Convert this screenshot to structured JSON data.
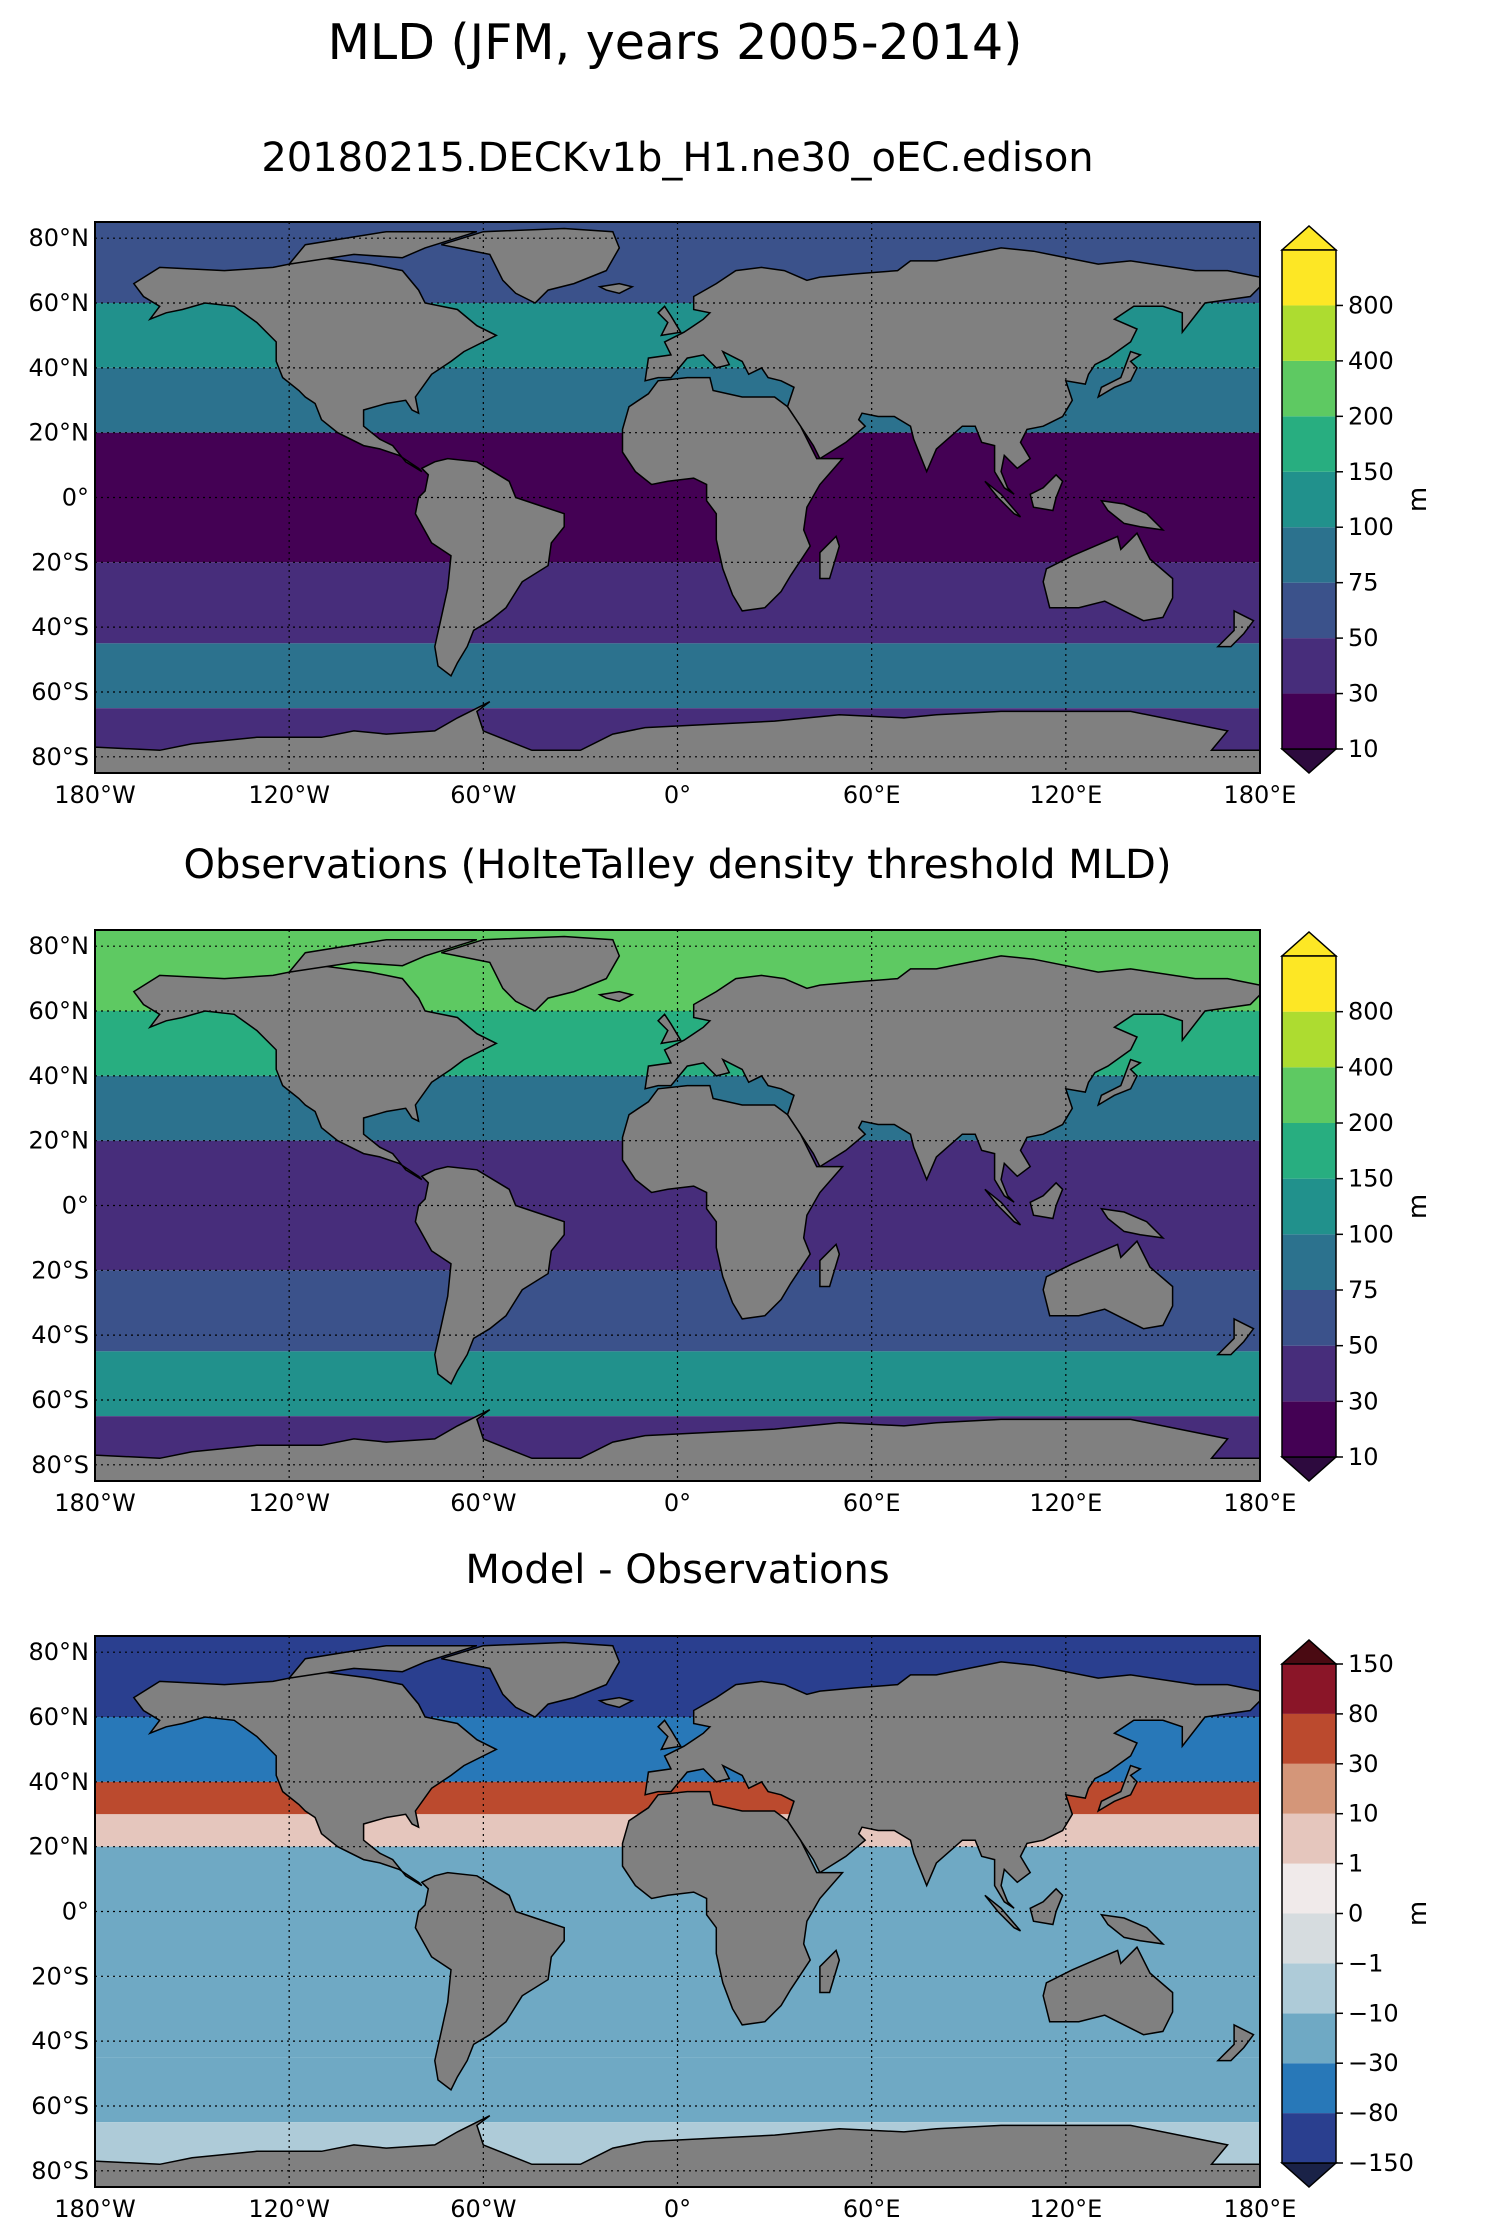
{
  "figure": {
    "suptitle": "MLD (JFM, years 2005-2014)",
    "map_land_color": "#808080",
    "map_missing_color": "#ffffff"
  },
  "chart_data": [
    {
      "type": "heatmap",
      "title": "20180215.DECKv1b_H1.ne30_oEC.edison",
      "x_ticks": [
        "180°W",
        "120°W",
        "60°W",
        "0°",
        "60°E",
        "120°E",
        "180°E"
      ],
      "y_ticks": [
        "80°N",
        "60°N",
        "40°N",
        "20°N",
        "0°",
        "20°S",
        "40°S",
        "60°S",
        "80°S"
      ],
      "xlim": [
        -180,
        180
      ],
      "ylim": [
        -85,
        85
      ],
      "grid": true,
      "colorbar": {
        "label": "m",
        "ticks": [
          "10",
          "30",
          "50",
          "75",
          "100",
          "150",
          "200",
          "400",
          "800"
        ],
        "colors": [
          "#440154",
          "#472d7b",
          "#3b528b",
          "#2c728e",
          "#21918c",
          "#28ae80",
          "#5ec962",
          "#addc30",
          "#fde725"
        ],
        "under": "#2d0a3e",
        "over": "#fde725"
      },
      "zones": [
        {
          "lat": [
            60,
            85
          ],
          "value": 60
        },
        {
          "lat": [
            40,
            60
          ],
          "value": 110
        },
        {
          "lat": [
            20,
            40
          ],
          "value": 85
        },
        {
          "lat": [
            -20,
            20
          ],
          "value": 25
        },
        {
          "lat": [
            -45,
            -20
          ],
          "value": 40
        },
        {
          "lat": [
            -65,
            -45
          ],
          "value": 80
        },
        {
          "lat": [
            -85,
            -65
          ],
          "value": 30
        }
      ]
    },
    {
      "type": "heatmap",
      "title": "Observations (HolteTalley density threshold MLD)",
      "x_ticks": [
        "180°W",
        "120°W",
        "60°W",
        "0°",
        "60°E",
        "120°E",
        "180°E"
      ],
      "y_ticks": [
        "80°N",
        "60°N",
        "40°N",
        "20°N",
        "0°",
        "20°S",
        "40°S",
        "60°S",
        "80°S"
      ],
      "xlim": [
        -180,
        180
      ],
      "ylim": [
        -85,
        85
      ],
      "grid": true,
      "colorbar": {
        "label": "m",
        "ticks": [
          "10",
          "30",
          "50",
          "75",
          "100",
          "150",
          "200",
          "400",
          "800"
        ],
        "colors": [
          "#440154",
          "#472d7b",
          "#3b528b",
          "#2c728e",
          "#21918c",
          "#28ae80",
          "#5ec962",
          "#addc30",
          "#fde725"
        ],
        "under": "#2d0a3e",
        "over": "#fde725"
      },
      "zones": [
        {
          "lat": [
            60,
            85
          ],
          "value": 300
        },
        {
          "lat": [
            40,
            60
          ],
          "value": 150
        },
        {
          "lat": [
            20,
            40
          ],
          "value": 90
        },
        {
          "lat": [
            -20,
            20
          ],
          "value": 35
        },
        {
          "lat": [
            -45,
            -20
          ],
          "value": 55
        },
        {
          "lat": [
            -65,
            -45
          ],
          "value": 110
        },
        {
          "lat": [
            -85,
            -65
          ],
          "value": 30
        }
      ]
    },
    {
      "type": "heatmap",
      "title": "Model - Observations",
      "x_ticks": [
        "180°W",
        "120°W",
        "60°W",
        "0°",
        "60°E",
        "120°E",
        "180°E"
      ],
      "y_ticks": [
        "80°N",
        "60°N",
        "40°N",
        "20°N",
        "0°",
        "20°S",
        "40°S",
        "60°S",
        "80°S"
      ],
      "xlim": [
        -180,
        180
      ],
      "ylim": [
        -85,
        85
      ],
      "grid": true,
      "colorbar": {
        "label": "m",
        "ticks": [
          "−150",
          "−80",
          "−30",
          "−10",
          "−1",
          "0",
          "1",
          "10",
          "30",
          "80",
          "150"
        ],
        "colors": [
          "#2a3f8f",
          "#2878b8",
          "#6fa9c4",
          "#aecbd8",
          "#d6dcdf",
          "#f0eaea",
          "#e5c6bd",
          "#d49679",
          "#bb4a2e",
          "#8a1528"
        ],
        "under": "#1a2247",
        "over": "#4a0a12"
      },
      "zones": [
        {
          "lat": [
            60,
            85
          ],
          "value": -90
        },
        {
          "lat": [
            40,
            60
          ],
          "value": -40
        },
        {
          "lat": [
            30,
            40
          ],
          "value": 40
        },
        {
          "lat": [
            20,
            30
          ],
          "value": 5
        },
        {
          "lat": [
            -20,
            20
          ],
          "value": -15
        },
        {
          "lat": [
            -45,
            -20
          ],
          "value": -12
        },
        {
          "lat": [
            -65,
            -45
          ],
          "value": -25
        },
        {
          "lat": [
            -85,
            -65
          ],
          "value": -5
        }
      ]
    }
  ]
}
